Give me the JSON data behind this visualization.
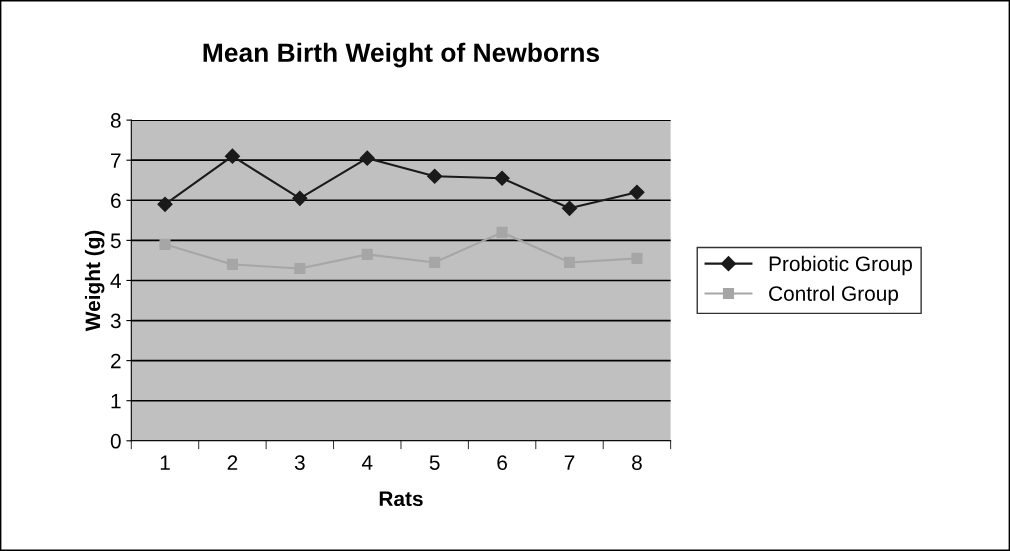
{
  "chart_data": {
    "type": "line",
    "title": "Mean Birth Weight of Newborns",
    "xlabel": "Rats",
    "ylabel": "Weight (g)",
    "categories": [
      "1",
      "2",
      "3",
      "4",
      "5",
      "6",
      "7",
      "8"
    ],
    "series": [
      {
        "name": "Probiotic Group",
        "color": "#1a1a1a",
        "marker": "diamond",
        "values": [
          5.9,
          7.1,
          6.05,
          7.05,
          6.6,
          6.55,
          5.8,
          6.2
        ]
      },
      {
        "name": "Control Group",
        "color": "#a6a6a6",
        "marker": "square",
        "values": [
          4.9,
          4.4,
          4.3,
          4.65,
          4.45,
          5.2,
          4.45,
          4.55
        ]
      }
    ],
    "ylim": [
      0,
      8
    ],
    "yticks": [
      0,
      1,
      2,
      3,
      4,
      5,
      6,
      7,
      8
    ],
    "grid": "y",
    "legend": "right"
  }
}
